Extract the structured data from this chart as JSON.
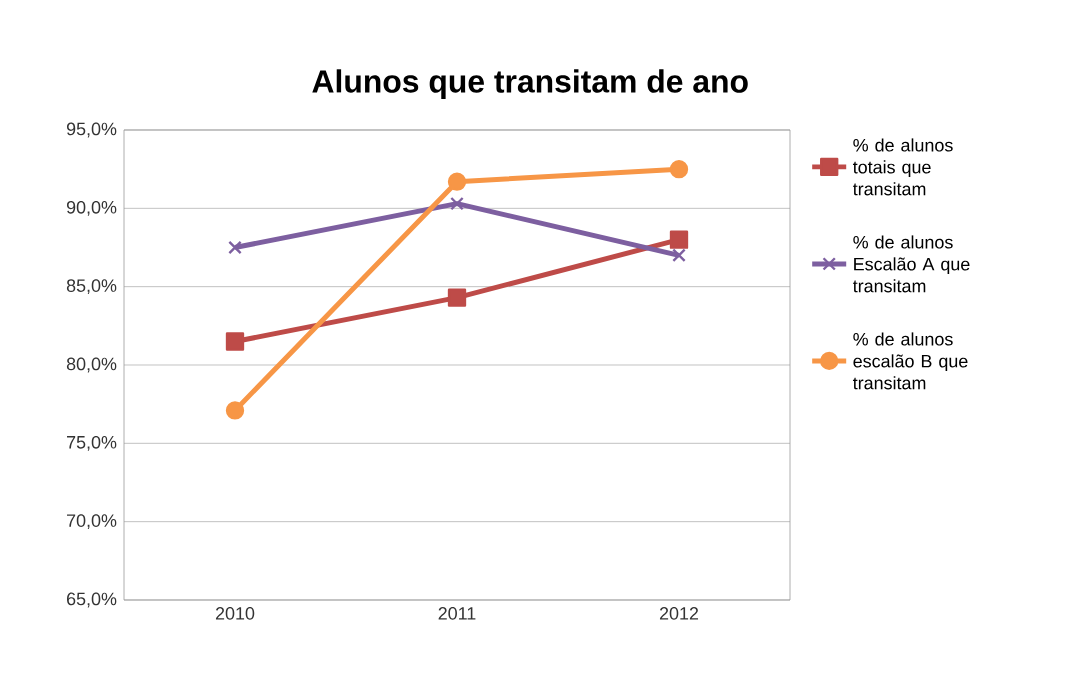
{
  "chart_data": {
    "type": "line",
    "title": "Alunos que transitam de ano",
    "categories": [
      "2010",
      "2011",
      "2012"
    ],
    "series": [
      {
        "name": "% de alunos totais que transitam",
        "color": "#be4b48",
        "marker": "square",
        "values": [
          81.5,
          84.3,
          88.0
        ]
      },
      {
        "name": "% de alunos Escalão A que transitam",
        "color": "#7d5fa0",
        "marker": "cross",
        "values": [
          87.5,
          90.3,
          87.0
        ]
      },
      {
        "name": "% de alunos escalão B que transitam",
        "color": "#f79646",
        "marker": "circle",
        "values": [
          77.1,
          91.7,
          92.5
        ]
      }
    ],
    "ylim": [
      65,
      95
    ],
    "yticks": [
      {
        "value": 65,
        "label": "65,0%"
      },
      {
        "value": 70,
        "label": "70,0%"
      },
      {
        "value": 75,
        "label": "75,0%"
      },
      {
        "value": 80,
        "label": "80,0%"
      },
      {
        "value": 85,
        "label": "85,0%"
      },
      {
        "value": 90,
        "label": "90,0%"
      },
      {
        "value": 95,
        "label": "95,0%"
      }
    ],
    "grid": "y",
    "legend": "right"
  }
}
